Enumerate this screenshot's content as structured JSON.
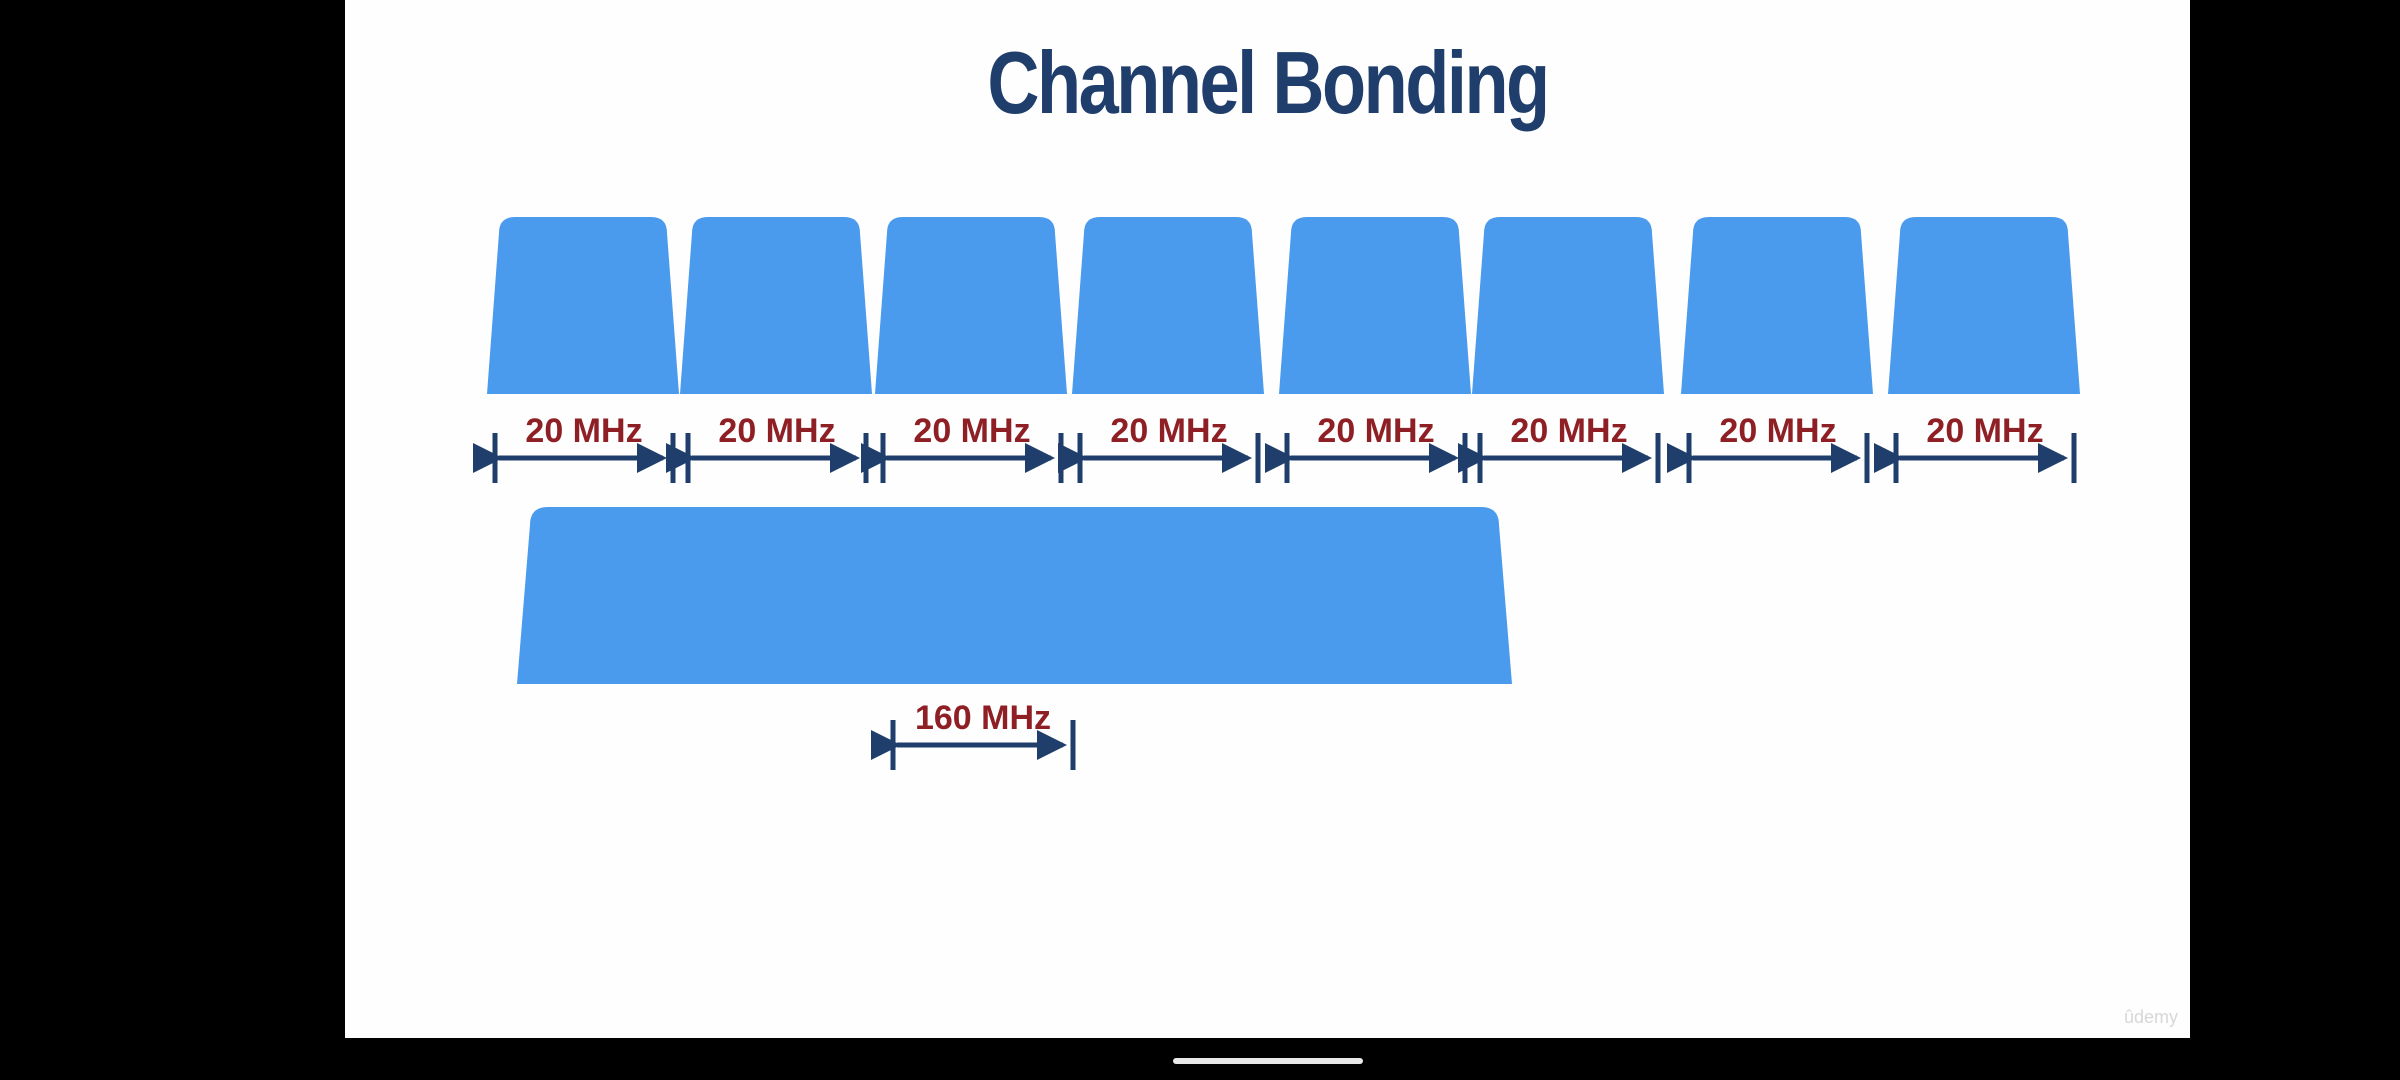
{
  "slide": {
    "title": "Channel Bonding",
    "channel_label": "20 MHz",
    "channel_count": 8,
    "bonded_label": "160 MHz",
    "channel_color": "#4a9aed",
    "arrow_color": "#1f3e6b",
    "label_color": "#8e1f24"
  },
  "watermark": "ûdemy"
}
